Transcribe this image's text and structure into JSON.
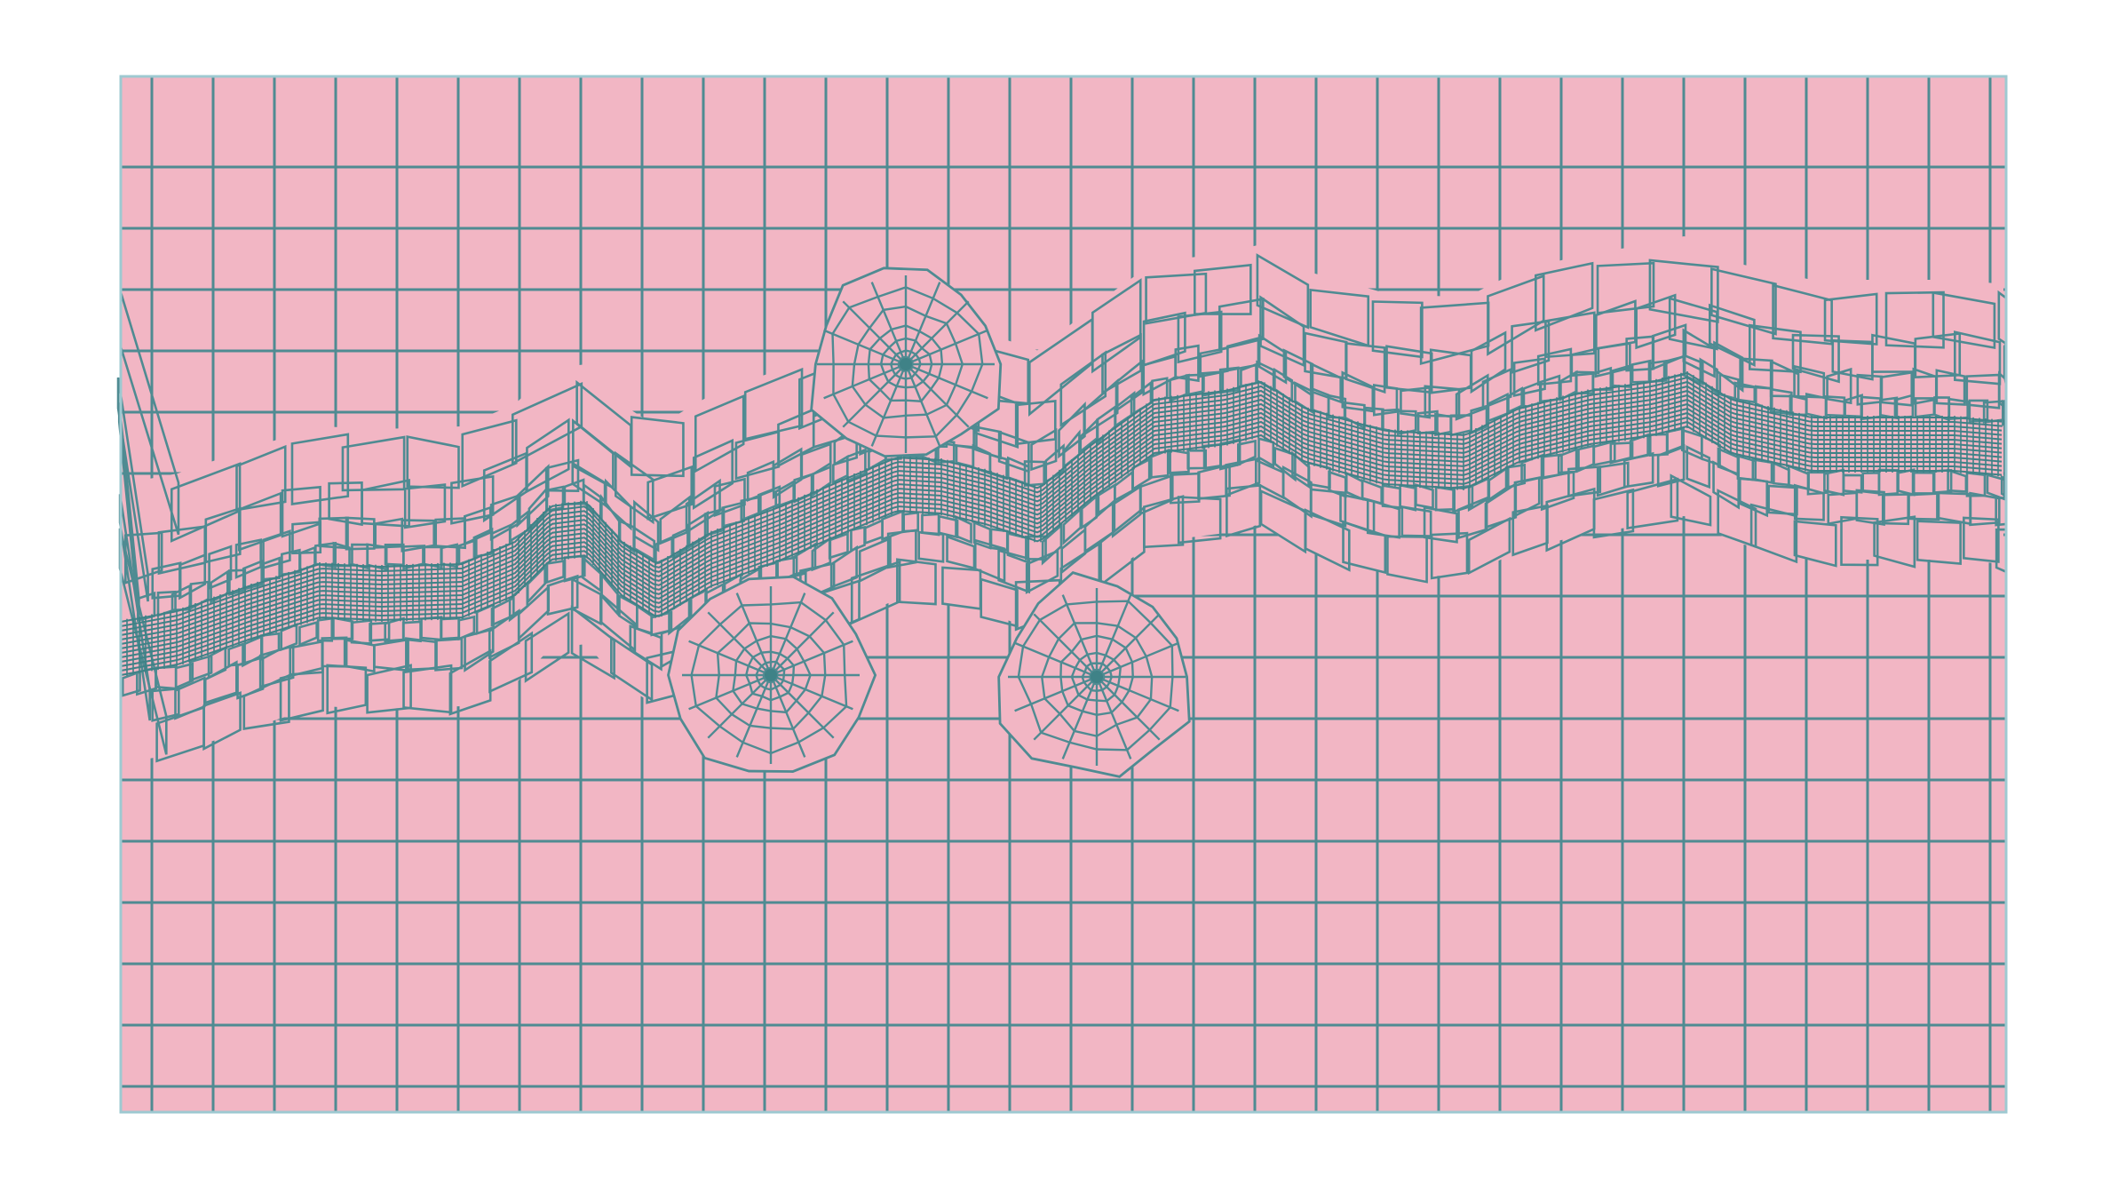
{
  "figure": {
    "kind": "mesh",
    "description_visible_text": ""
  },
  "colors": {
    "background": "#ffffff",
    "cell_fill": "#f2b6c4",
    "edge": "#4f8b92",
    "dense_edge": "#3f8287",
    "border": "#9ec9d1"
  },
  "mesh": {
    "regions": [
      {
        "name": "coarse-cartesian-grid"
      },
      {
        "name": "refined-fracture-band"
      },
      {
        "name": "well-refinement-1"
      },
      {
        "name": "well-refinement-2"
      },
      {
        "name": "well-refinement-3"
      }
    ]
  }
}
